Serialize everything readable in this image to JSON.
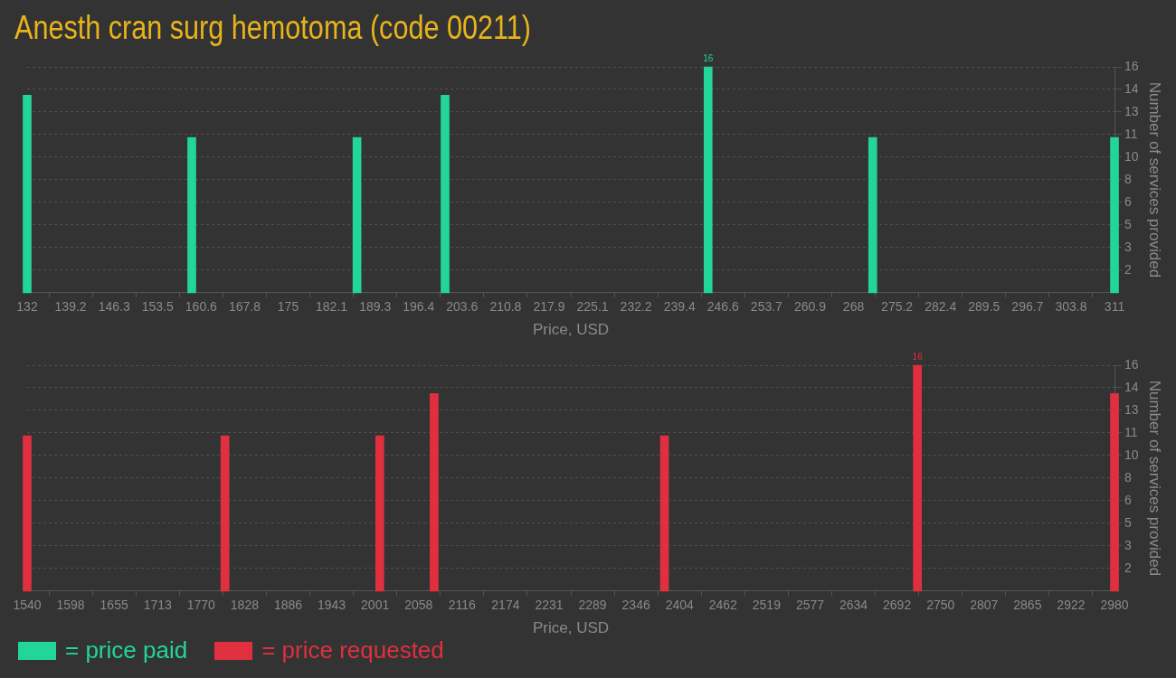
{
  "chart_data": [
    {
      "type": "bar",
      "title": "Anesth cran surg hemotoma (code 00211)",
      "xlabel": "Price, USD",
      "ylabel": "Number of services provided",
      "x": [
        132,
        159.1,
        186.3,
        200.8,
        244.1,
        271.2,
        311
      ],
      "series": [
        {
          "name": "= price paid",
          "color": "#22d69a",
          "values": [
            14,
            11,
            11,
            14,
            16,
            11,
            11
          ],
          "value_labels": [
            null,
            null,
            null,
            null,
            "16",
            null,
            null
          ]
        }
      ],
      "xlim": [
        132,
        311
      ],
      "xticks": [
        132,
        {
          "value": 139.16,
          "label": "139.2"
        },
        {
          "value": 146.32,
          "label": "146.3"
        },
        {
          "value": 153.48,
          "label": "153.5"
        },
        {
          "value": 160.64,
          "label": "160.6"
        },
        167.8,
        {
          "value": 174.96,
          "label": "175"
        },
        {
          "value": 182.12,
          "label": "182.1"
        },
        {
          "value": 189.28,
          "label": "189.3"
        },
        {
          "value": 196.44,
          "label": "196.4"
        },
        203.6,
        {
          "value": 210.76,
          "label": "210.8"
        },
        {
          "value": 217.92,
          "label": "217.9"
        },
        {
          "value": 225.08,
          "label": "225.1"
        },
        {
          "value": 232.24,
          "label": "232.2"
        },
        239.4,
        {
          "value": 246.56,
          "label": "246.6"
        },
        {
          "value": 253.72,
          "label": "253.7"
        },
        {
          "value": 260.88,
          "label": "260.9"
        },
        {
          "value": 268.04,
          "label": "268"
        },
        275.2,
        {
          "value": 282.36,
          "label": "282.4"
        },
        {
          "value": 289.52,
          "label": "289.5"
        },
        {
          "value": 296.68,
          "label": "296.7"
        },
        {
          "value": 303.84,
          "label": "303.8"
        },
        311
      ],
      "ylim": [
        0,
        16
      ],
      "yticks": [
        {
          "value": 1.6,
          "label": "2"
        },
        {
          "value": 3.2,
          "label": "3"
        },
        {
          "value": 4.8,
          "label": "5"
        },
        {
          "value": 6.4,
          "label": "6"
        },
        {
          "value": 8,
          "label": "8"
        },
        {
          "value": 9.6,
          "label": "10"
        },
        {
          "value": 11.2,
          "label": "11"
        },
        {
          "value": 12.8,
          "label": "13"
        },
        {
          "value": 14.4,
          "label": "14"
        },
        {
          "value": 16,
          "label": "16"
        }
      ],
      "grid": "y",
      "legend": "bottom left"
    },
    {
      "type": "bar",
      "xlabel": "Price, USD",
      "ylabel": "Number of services provided",
      "x": [
        1540,
        1802,
        2007,
        2079,
        2384,
        2719,
        2980
      ],
      "series": [
        {
          "name": "= price requested",
          "color": "#e0303f",
          "values": [
            11,
            11,
            11,
            14,
            11,
            16,
            14
          ],
          "value_labels": [
            null,
            null,
            null,
            null,
            null,
            "16",
            null
          ]
        }
      ],
      "xlim": [
        1540,
        2980
      ],
      "xticks": [
        1540,
        {
          "value": 1597.6,
          "label": "1598"
        },
        {
          "value": 1655.2,
          "label": "1655"
        },
        {
          "value": 1712.8,
          "label": "1713"
        },
        {
          "value": 1770.4,
          "label": "1770"
        },
        1828,
        {
          "value": 1885.6,
          "label": "1886"
        },
        {
          "value": 1943.2,
          "label": "1943"
        },
        {
          "value": 2000.8,
          "label": "2001"
        },
        {
          "value": 2058.4,
          "label": "2058"
        },
        2116,
        {
          "value": 2173.6,
          "label": "2174"
        },
        {
          "value": 2231.2,
          "label": "2231"
        },
        {
          "value": 2288.8,
          "label": "2289"
        },
        {
          "value": 2346.4,
          "label": "2346"
        },
        2404,
        {
          "value": 2461.6,
          "label": "2462"
        },
        {
          "value": 2519.2,
          "label": "2519"
        },
        {
          "value": 2576.8,
          "label": "2577"
        },
        {
          "value": 2634.4,
          "label": "2634"
        },
        2692,
        {
          "value": 2749.6,
          "label": "2750"
        },
        {
          "value": 2807.2,
          "label": "2807"
        },
        {
          "value": 2864.8,
          "label": "2865"
        },
        {
          "value": 2922.4,
          "label": "2922"
        },
        2980
      ],
      "ylim": [
        0,
        16
      ],
      "yticks": [
        {
          "value": 1.6,
          "label": "2"
        },
        {
          "value": 3.2,
          "label": "3"
        },
        {
          "value": 4.8,
          "label": "5"
        },
        {
          "value": 6.4,
          "label": "6"
        },
        {
          "value": 8,
          "label": "8"
        },
        {
          "value": 9.6,
          "label": "10"
        },
        {
          "value": 11.2,
          "label": "11"
        },
        {
          "value": 12.8,
          "label": "13"
        },
        {
          "value": 14.4,
          "label": "14"
        },
        {
          "value": 16,
          "label": "16"
        }
      ],
      "grid": "y",
      "legend": "bottom left"
    }
  ]
}
